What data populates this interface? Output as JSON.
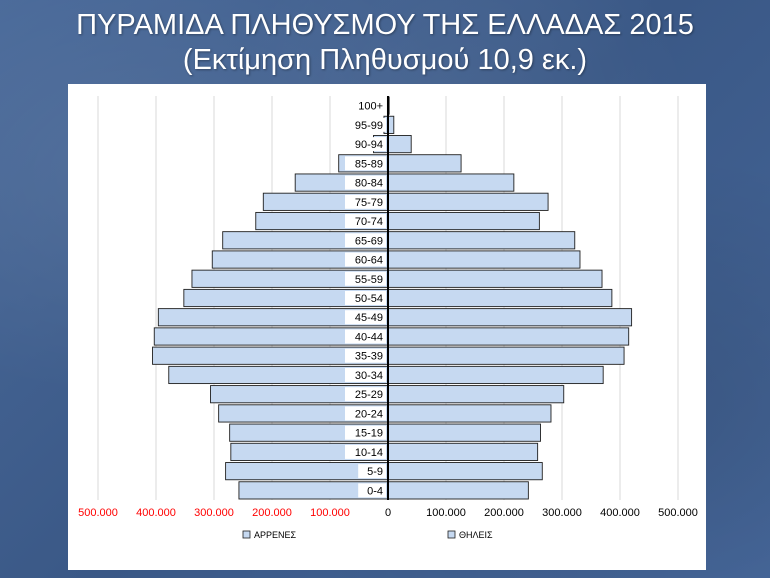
{
  "title_line1": "ΠΥΡΑΜΙΔΑ ΠΛΗΘΥΣΜΟΥ ΤΗΣ ΕΛΛΑΔΑΣ 2015",
  "title_line2": "(Εκτίμηση Πληθυσμού 10,9 εκ.)",
  "chart_data": {
    "type": "bar",
    "orientation": "horizontal",
    "categories": [
      "100+",
      "95-99",
      "90-94",
      "85-89",
      "80-84",
      "75-79",
      "70-74",
      "65-69",
      "60-64",
      "55-59",
      "50-54",
      "45-49",
      "40-44",
      "35-39",
      "30-34",
      "25-29",
      "20-24",
      "15-19",
      "10-14",
      "5-9",
      "0-4"
    ],
    "series": [
      {
        "name": "ΑΡΡΕΝΕΣ",
        "side": "left",
        "color": "#c6d9f1",
        "values": [
          1000,
          7000,
          25000,
          85000,
          160000,
          215000,
          228000,
          285000,
          303000,
          338000,
          352000,
          396000,
          403000,
          406000,
          378000,
          306000,
          292000,
          273000,
          271000,
          280000,
          257000
        ]
      },
      {
        "name": "ΘΗΛΕΙΣ",
        "side": "right",
        "color": "#c6d9f1",
        "values": [
          2000,
          10000,
          40000,
          126000,
          217000,
          276000,
          261000,
          322000,
          331000,
          369000,
          386000,
          420000,
          415000,
          407000,
          371000,
          303000,
          281000,
          263000,
          258000,
          266000,
          242000
        ]
      }
    ],
    "xticks": [
      "500.000",
      "400.000",
      "300.000",
      "200.000",
      "100.000",
      "0",
      "100.000",
      "200.000",
      "300.000",
      "400.000",
      "500.000"
    ],
    "xlim": [
      -500000,
      500000
    ],
    "grid": true,
    "legend_position": "bottom",
    "axis_colors": {
      "left_ticks": "#ff0000",
      "right_ticks": "#000000"
    }
  }
}
